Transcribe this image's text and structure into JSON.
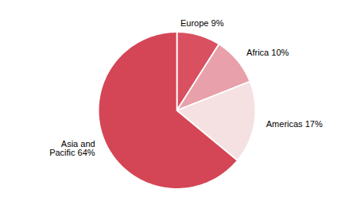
{
  "chart_data": {
    "type": "pie",
    "categories": [
      "Europe 9%",
      "Africa 10%",
      "Americas 17%",
      "Asia and\nPacific 64%"
    ],
    "values": [
      9,
      10,
      17,
      64
    ],
    "colors": [
      "#d95060",
      "#e8a0aa",
      "#f5e0e2",
      "#d44555"
    ]
  }
}
